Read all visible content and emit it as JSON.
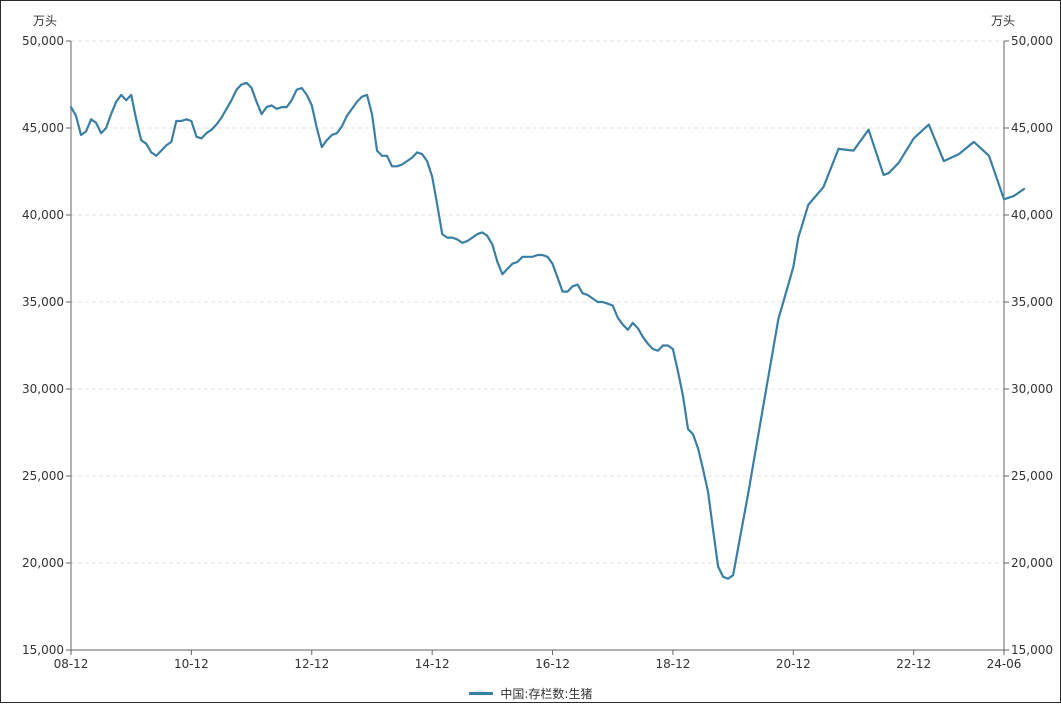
{
  "chart_data": {
    "type": "line",
    "y_unit_left": "万头",
    "y_unit_right": "万头",
    "ylim": [
      15000,
      50000
    ],
    "y_ticks": [
      15000,
      20000,
      25000,
      30000,
      35000,
      40000,
      45000,
      50000
    ],
    "y_tick_labels": [
      "15,000",
      "20,000",
      "25,000",
      "30,000",
      "35,000",
      "40,000",
      "45,000",
      "50,000"
    ],
    "x_range": [
      "2008-12",
      "2024-06"
    ],
    "x_ticks": [
      {
        "date": "2008-12",
        "label": "08-12"
      },
      {
        "date": "2010-12",
        "label": "10-12"
      },
      {
        "date": "2012-12",
        "label": "12-12"
      },
      {
        "date": "2014-12",
        "label": "14-12"
      },
      {
        "date": "2016-12",
        "label": "16-12"
      },
      {
        "date": "2018-12",
        "label": "18-12"
      },
      {
        "date": "2020-12",
        "label": "20-12"
      },
      {
        "date": "2022-12",
        "label": "22-12"
      },
      {
        "date": "2024-06",
        "label": "24-06"
      }
    ],
    "grid": true,
    "legend_position": "bottom-center",
    "series": [
      {
        "name": "中国:存栏数:生猪",
        "color": "#3a7fa3",
        "points": [
          [
            "2008-12",
            46200
          ],
          [
            "2009-01",
            45700
          ],
          [
            "2009-02",
            44600
          ],
          [
            "2009-03",
            44800
          ],
          [
            "2009-04",
            45500
          ],
          [
            "2009-05",
            45300
          ],
          [
            "2009-06",
            44700
          ],
          [
            "2009-07",
            45000
          ],
          [
            "2009-08",
            45800
          ],
          [
            "2009-09",
            46500
          ],
          [
            "2009-10",
            46900
          ],
          [
            "2009-11",
            46600
          ],
          [
            "2009-12",
            46900
          ],
          [
            "2010-01",
            45500
          ],
          [
            "2010-02",
            44300
          ],
          [
            "2010-03",
            44100
          ],
          [
            "2010-04",
            43600
          ],
          [
            "2010-05",
            43400
          ],
          [
            "2010-06",
            43700
          ],
          [
            "2010-07",
            44000
          ],
          [
            "2010-08",
            44200
          ],
          [
            "2010-09",
            45400
          ],
          [
            "2010-10",
            45400
          ],
          [
            "2010-11",
            45500
          ],
          [
            "2010-12",
            45400
          ],
          [
            "2011-01",
            44500
          ],
          [
            "2011-02",
            44400
          ],
          [
            "2011-03",
            44700
          ],
          [
            "2011-04",
            44900
          ],
          [
            "2011-05",
            45200
          ],
          [
            "2011-06",
            45600
          ],
          [
            "2011-07",
            46100
          ],
          [
            "2011-08",
            46600
          ],
          [
            "2011-09",
            47200
          ],
          [
            "2011-10",
            47500
          ],
          [
            "2011-11",
            47600
          ],
          [
            "2011-12",
            47300
          ],
          [
            "2012-01",
            46500
          ],
          [
            "2012-02",
            45800
          ],
          [
            "2012-03",
            46200
          ],
          [
            "2012-04",
            46300
          ],
          [
            "2012-05",
            46100
          ],
          [
            "2012-06",
            46200
          ],
          [
            "2012-07",
            46200
          ],
          [
            "2012-08",
            46600
          ],
          [
            "2012-09",
            47200
          ],
          [
            "2012-10",
            47300
          ],
          [
            "2012-11",
            46900
          ],
          [
            "2012-12",
            46300
          ],
          [
            "2013-01",
            45000
          ],
          [
            "2013-02",
            43900
          ],
          [
            "2013-03",
            44300
          ],
          [
            "2013-04",
            44600
          ],
          [
            "2013-05",
            44700
          ],
          [
            "2013-06",
            45100
          ],
          [
            "2013-07",
            45700
          ],
          [
            "2013-08",
            46100
          ],
          [
            "2013-09",
            46500
          ],
          [
            "2013-10",
            46800
          ],
          [
            "2013-11",
            46900
          ],
          [
            "2013-12",
            45800
          ],
          [
            "2014-01",
            43700
          ],
          [
            "2014-02",
            43400
          ],
          [
            "2014-03",
            43400
          ],
          [
            "2014-04",
            42800
          ],
          [
            "2014-05",
            42800
          ],
          [
            "2014-06",
            42900
          ],
          [
            "2014-07",
            43100
          ],
          [
            "2014-08",
            43300
          ],
          [
            "2014-09",
            43600
          ],
          [
            "2014-10",
            43500
          ],
          [
            "2014-11",
            43100
          ],
          [
            "2014-12",
            42200
          ],
          [
            "2015-01",
            40600
          ],
          [
            "2015-02",
            38900
          ],
          [
            "2015-03",
            38700
          ],
          [
            "2015-04",
            38700
          ],
          [
            "2015-05",
            38600
          ],
          [
            "2015-06",
            38400
          ],
          [
            "2015-07",
            38500
          ],
          [
            "2015-08",
            38700
          ],
          [
            "2015-09",
            38900
          ],
          [
            "2015-10",
            39000
          ],
          [
            "2015-11",
            38800
          ],
          [
            "2015-12",
            38300
          ],
          [
            "2016-01",
            37300
          ],
          [
            "2016-02",
            36600
          ],
          [
            "2016-03",
            36900
          ],
          [
            "2016-04",
            37200
          ],
          [
            "2016-05",
            37300
          ],
          [
            "2016-06",
            37600
          ],
          [
            "2016-07",
            37600
          ],
          [
            "2016-08",
            37600
          ],
          [
            "2016-09",
            37700
          ],
          [
            "2016-10",
            37700
          ],
          [
            "2016-11",
            37600
          ],
          [
            "2016-12",
            37200
          ],
          [
            "2017-01",
            36400
          ],
          [
            "2017-02",
            35600
          ],
          [
            "2017-03",
            35600
          ],
          [
            "2017-04",
            35900
          ],
          [
            "2017-05",
            36000
          ],
          [
            "2017-06",
            35500
          ],
          [
            "2017-07",
            35400
          ],
          [
            "2017-08",
            35200
          ],
          [
            "2017-09",
            35000
          ],
          [
            "2017-10",
            35000
          ],
          [
            "2017-11",
            34900
          ],
          [
            "2017-12",
            34800
          ],
          [
            "2018-01",
            34100
          ],
          [
            "2018-02",
            33700
          ],
          [
            "2018-03",
            33400
          ],
          [
            "2018-04",
            33800
          ],
          [
            "2018-05",
            33500
          ],
          [
            "2018-06",
            33000
          ],
          [
            "2018-07",
            32600
          ],
          [
            "2018-08",
            32300
          ],
          [
            "2018-09",
            32200
          ],
          [
            "2018-10",
            32500
          ],
          [
            "2018-11",
            32500
          ],
          [
            "2018-12",
            32300
          ],
          [
            "2019-01",
            31000
          ],
          [
            "2019-02",
            29600
          ],
          [
            "2019-03",
            27700
          ],
          [
            "2019-04",
            27400
          ],
          [
            "2019-05",
            26600
          ],
          [
            "2019-06",
            25400
          ],
          [
            "2019-07",
            24100
          ],
          [
            "2019-08",
            21900
          ],
          [
            "2019-09",
            19800
          ],
          [
            "2019-10",
            19200
          ],
          [
            "2019-11",
            19100
          ],
          [
            "2019-12",
            19300
          ],
          [
            "2020-03",
            24000
          ],
          [
            "2020-06",
            29000
          ],
          [
            "2020-09",
            34000
          ],
          [
            "2020-12",
            37000
          ],
          [
            "2021-01",
            38700
          ],
          [
            "2021-03",
            40600
          ],
          [
            "2021-06",
            41600
          ],
          [
            "2021-09",
            43800
          ],
          [
            "2021-12",
            43700
          ],
          [
            "2022-03",
            44900
          ],
          [
            "2022-06",
            42300
          ],
          [
            "2022-07",
            42400
          ],
          [
            "2022-09",
            43000
          ],
          [
            "2022-12",
            44400
          ],
          [
            "2023-03",
            45200
          ],
          [
            "2023-06",
            43100
          ],
          [
            "2023-09",
            43500
          ],
          [
            "2023-12",
            44200
          ],
          [
            "2024-03",
            43400
          ],
          [
            "2024-06",
            40900
          ],
          [
            "2024-08",
            41100
          ],
          [
            "2024-10",
            41500
          ]
        ]
      }
    ]
  }
}
